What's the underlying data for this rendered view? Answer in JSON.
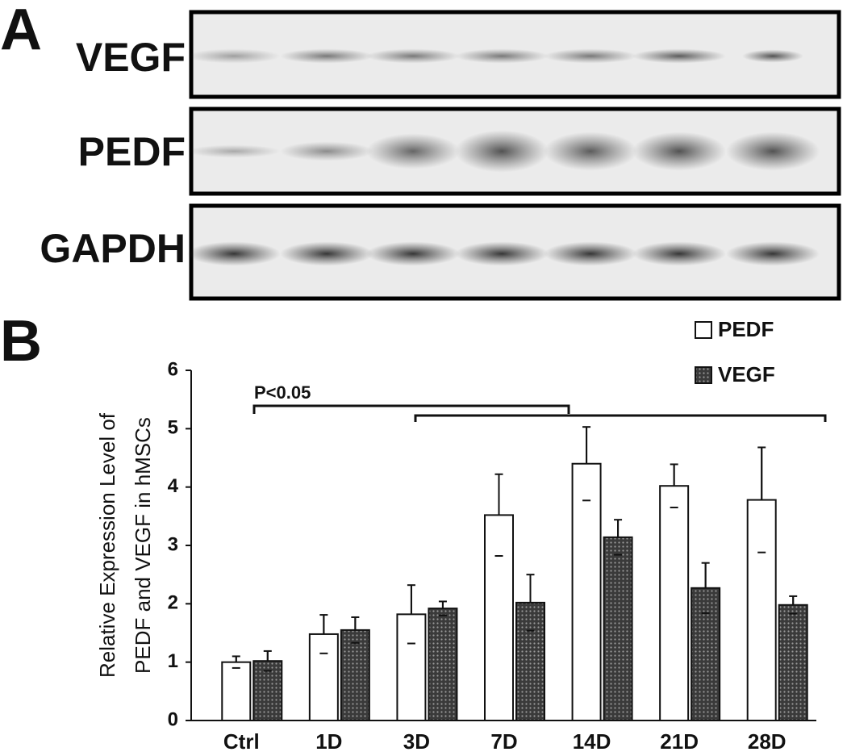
{
  "panel_a": {
    "label": "A",
    "blots": [
      "VEGF",
      "PEDF",
      "GAPDH"
    ]
  },
  "panel_b": {
    "label": "B"
  },
  "chart_data": {
    "type": "bar",
    "ylabel": [
      "Relative Expression Level of",
      "PEDF and VEGF in hMSCs"
    ],
    "annotation": "P<0.05",
    "categories": [
      "Ctrl",
      "1D",
      "3D",
      "7D",
      "14D",
      "21D",
      "28D"
    ],
    "series": [
      {
        "name": "PEDF",
        "color": "#ffffff",
        "values": [
          1.0,
          1.48,
          1.82,
          3.52,
          4.4,
          4.02,
          3.78
        ],
        "errors": [
          0.1,
          0.33,
          0.5,
          0.7,
          0.63,
          0.37,
          0.9
        ]
      },
      {
        "name": "VEGF",
        "color": "#3a3a3a",
        "values": [
          1.02,
          1.55,
          1.92,
          2.02,
          3.14,
          2.27,
          1.98
        ],
        "errors": [
          0.17,
          0.22,
          0.12,
          0.48,
          0.3,
          0.43,
          0.15
        ]
      }
    ],
    "ylim": [
      0,
      6
    ],
    "yticks": [
      0,
      1,
      2,
      3,
      4,
      5,
      6
    ],
    "grid": false,
    "legend": "top-right"
  }
}
